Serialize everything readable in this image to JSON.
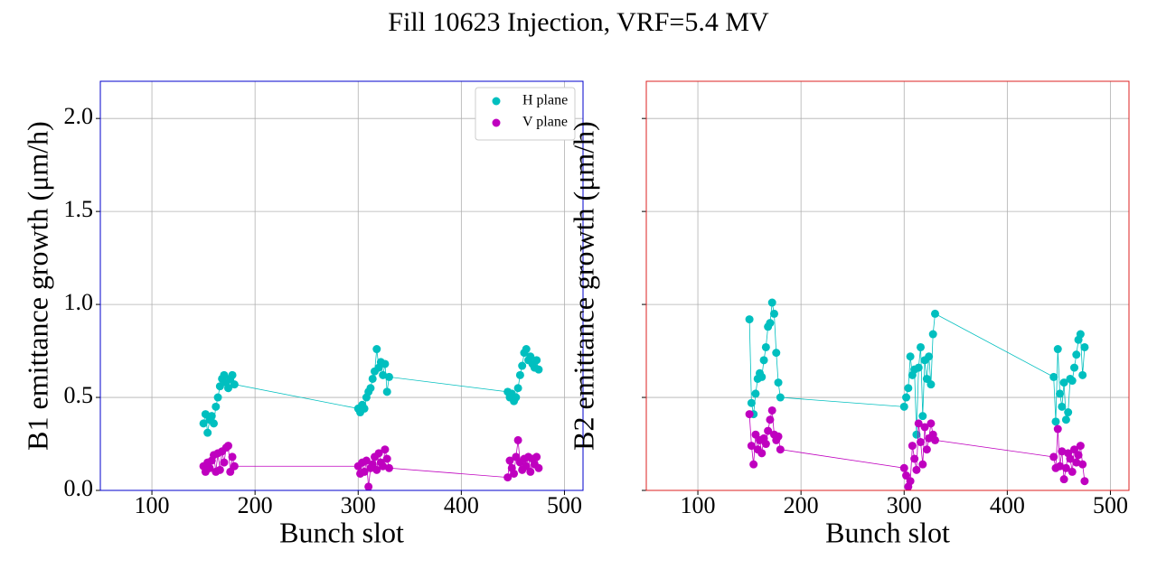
{
  "title": "Fill 10623 Injection, VRF=5.4 MV",
  "chart_data": [
    {
      "type": "scatter",
      "xlabel": "Bunch slot",
      "ylabel": "B1 emittance growth (μm/h)",
      "frame_color": "#0000cc",
      "xlim": [
        50,
        518
      ],
      "ylim": [
        0,
        2.2
      ],
      "xticks": [
        100,
        200,
        300,
        400,
        500
      ],
      "yticks": [
        {
          "value": 0,
          "label": "0.0"
        },
        0.5,
        {
          "value": 1,
          "label": "1.0"
        },
        1.5,
        {
          "value": 2,
          "label": "2.0"
        }
      ],
      "ytick_labels": true,
      "grid": true,
      "legend": "upper right",
      "x": [
        150,
        152,
        154,
        156,
        158,
        160,
        162,
        164,
        166,
        168,
        170,
        172,
        174,
        176,
        178,
        180,
        300,
        302,
        304,
        306,
        308,
        310,
        312,
        314,
        316,
        318,
        320,
        322,
        324,
        326,
        328,
        330,
        445,
        447,
        449,
        451,
        453,
        455,
        457,
        459,
        461,
        463,
        465,
        467,
        469,
        471,
        473,
        475
      ],
      "series": [
        {
          "name": "H plane",
          "color": "#00bfbf",
          "values": [
            0.36,
            0.41,
            0.31,
            0.38,
            0.4,
            0.36,
            0.45,
            0.5,
            0.56,
            0.6,
            0.62,
            0.58,
            0.55,
            0.6,
            0.62,
            0.57,
            0.44,
            0.42,
            0.46,
            0.44,
            0.5,
            0.53,
            0.55,
            0.6,
            0.64,
            0.76,
            0.66,
            0.69,
            0.62,
            0.68,
            0.53,
            0.61,
            0.53,
            0.5,
            0.52,
            0.48,
            0.5,
            0.55,
            0.62,
            0.67,
            0.74,
            0.76,
            0.7,
            0.72,
            0.68,
            0.66,
            0.7,
            0.65
          ]
        },
        {
          "name": "V plane",
          "color": "#bf00bf",
          "values": [
            0.13,
            0.1,
            0.15,
            0.12,
            0.16,
            0.19,
            0.1,
            0.2,
            0.11,
            0.21,
            0.15,
            0.23,
            0.24,
            0.1,
            0.18,
            0.13,
            0.13,
            0.09,
            0.15,
            0.1,
            0.16,
            0.02,
            0.12,
            0.14,
            0.18,
            0.11,
            0.2,
            0.15,
            0.13,
            0.22,
            0.17,
            0.12,
            0.07,
            0.16,
            0.12,
            0.09,
            0.18,
            0.27,
            0.15,
            0.11,
            0.17,
            0.13,
            0.18,
            0.1,
            0.17,
            0.14,
            0.18,
            0.12
          ]
        }
      ]
    },
    {
      "type": "scatter",
      "xlabel": "Bunch slot",
      "ylabel": "B2 emittance growth (μm/h)",
      "frame_color": "#dd2222",
      "xlim": [
        50,
        518
      ],
      "ylim": [
        0,
        2.2
      ],
      "xticks": [
        100,
        200,
        300,
        400,
        500
      ],
      "yticks": [
        0,
        0.5,
        1,
        1.5,
        2
      ],
      "ytick_labels": false,
      "grid": true,
      "x": [
        150,
        152,
        154,
        156,
        158,
        160,
        162,
        164,
        166,
        168,
        170,
        172,
        174,
        176,
        178,
        180,
        300,
        302,
        304,
        306,
        308,
        310,
        312,
        314,
        316,
        318,
        320,
        322,
        324,
        326,
        328,
        330,
        445,
        447,
        449,
        451,
        453,
        455,
        457,
        459,
        461,
        463,
        465,
        467,
        469,
        471,
        473,
        475
      ],
      "series": [
        {
          "name": "H plane",
          "color": "#00bfbf",
          "values": [
            0.92,
            0.47,
            0.41,
            0.52,
            0.6,
            0.63,
            0.61,
            0.7,
            0.77,
            0.88,
            0.9,
            1.01,
            0.95,
            0.74,
            0.58,
            0.5,
            0.45,
            0.5,
            0.55,
            0.72,
            0.62,
            0.65,
            0.3,
            0.66,
            0.77,
            0.4,
            0.7,
            0.6,
            0.72,
            0.57,
            0.84,
            0.95,
            0.61,
            0.37,
            0.76,
            0.52,
            0.45,
            0.58,
            0.38,
            0.42,
            0.6,
            0.59,
            0.66,
            0.73,
            0.81,
            0.84,
            0.62,
            0.77
          ]
        },
        {
          "name": "V plane",
          "color": "#bf00bf",
          "values": [
            0.41,
            0.24,
            0.14,
            0.3,
            0.22,
            0.27,
            0.2,
            0.28,
            0.25,
            0.32,
            0.38,
            0.43,
            0.3,
            0.27,
            0.29,
            0.22,
            0.12,
            0.08,
            0.02,
            0.05,
            0.24,
            0.17,
            0.11,
            0.36,
            0.26,
            0.14,
            0.34,
            0.22,
            0.28,
            0.36,
            0.3,
            0.27,
            0.18,
            0.12,
            0.33,
            0.13,
            0.21,
            0.06,
            0.12,
            0.2,
            0.17,
            0.1,
            0.22,
            0.15,
            0.19,
            0.24,
            0.14,
            0.05
          ]
        }
      ]
    }
  ]
}
